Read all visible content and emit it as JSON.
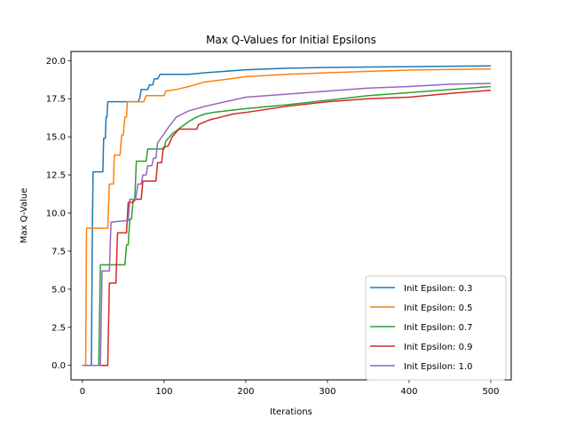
{
  "chart_data": {
    "type": "line",
    "title": "Max Q-Values for Initial Epsilons",
    "xlabel": "Iterations",
    "ylabel": "Max Q-Value",
    "xlim": [
      -14,
      525
    ],
    "ylim": [
      -0.95,
      20.6
    ],
    "xticks": [
      0,
      100,
      200,
      300,
      400,
      500
    ],
    "yticks": [
      0.0,
      2.5,
      5.0,
      7.5,
      10.0,
      12.5,
      15.0,
      17.5,
      20.0
    ],
    "grid": false,
    "legend_position": "lower right",
    "series": [
      {
        "name": "Init Epsilon: 0.3",
        "color": "#1f77b4",
        "points": [
          [
            0,
            0
          ],
          [
            11,
            0
          ],
          [
            12,
            8
          ],
          [
            13,
            12.7
          ],
          [
            25,
            12.7
          ],
          [
            26,
            14.9
          ],
          [
            28,
            14.9
          ],
          [
            29,
            16.3
          ],
          [
            30,
            16.3
          ],
          [
            31,
            17.3
          ],
          [
            68,
            17.3
          ],
          [
            70,
            17.5
          ],
          [
            72,
            18.1
          ],
          [
            80,
            18.1
          ],
          [
            82,
            18.4
          ],
          [
            86,
            18.4
          ],
          [
            88,
            18.8
          ],
          [
            92,
            18.8
          ],
          [
            95,
            19.1
          ],
          [
            130,
            19.1
          ],
          [
            150,
            19.2
          ],
          [
            200,
            19.4
          ],
          [
            250,
            19.5
          ],
          [
            300,
            19.55
          ],
          [
            350,
            19.58
          ],
          [
            400,
            19.6
          ],
          [
            450,
            19.63
          ],
          [
            500,
            19.65
          ]
        ]
      },
      {
        "name": "Init Epsilon: 0.5",
        "color": "#ff7f0e",
        "points": [
          [
            0,
            0
          ],
          [
            4,
            0
          ],
          [
            5,
            9
          ],
          [
            31,
            9
          ],
          [
            33,
            11.9
          ],
          [
            38,
            11.9
          ],
          [
            39,
            13.8
          ],
          [
            46,
            13.8
          ],
          [
            48,
            15.1
          ],
          [
            50,
            15.1
          ],
          [
            52,
            16.3
          ],
          [
            54,
            16.3
          ],
          [
            55,
            17.3
          ],
          [
            75,
            17.3
          ],
          [
            78,
            17.7
          ],
          [
            100,
            17.7
          ],
          [
            102,
            18
          ],
          [
            115,
            18.1
          ],
          [
            130,
            18.3
          ],
          [
            150,
            18.6
          ],
          [
            180,
            18.8
          ],
          [
            200,
            18.95
          ],
          [
            250,
            19.1
          ],
          [
            300,
            19.2
          ],
          [
            350,
            19.3
          ],
          [
            400,
            19.38
          ],
          [
            450,
            19.42
          ],
          [
            500,
            19.45
          ]
        ]
      },
      {
        "name": "Init Epsilon: 0.7",
        "color": "#2ca02c",
        "points": [
          [
            0,
            0
          ],
          [
            20,
            0
          ],
          [
            22,
            6.6
          ],
          [
            52,
            6.6
          ],
          [
            54,
            7.9
          ],
          [
            56,
            7.9
          ],
          [
            58,
            9.6
          ],
          [
            60,
            9.6
          ],
          [
            62,
            10.8
          ],
          [
            64,
            10.8
          ],
          [
            66,
            13.4
          ],
          [
            78,
            13.4
          ],
          [
            80,
            14.2
          ],
          [
            100,
            14.2
          ],
          [
            102,
            14.7
          ],
          [
            110,
            15.2
          ],
          [
            120,
            15.6
          ],
          [
            130,
            16
          ],
          [
            140,
            16.3
          ],
          [
            150,
            16.5
          ],
          [
            160,
            16.6
          ],
          [
            175,
            16.7
          ],
          [
            200,
            16.85
          ],
          [
            250,
            17.1
          ],
          [
            300,
            17.4
          ],
          [
            350,
            17.7
          ],
          [
            400,
            17.9
          ],
          [
            450,
            18.1
          ],
          [
            500,
            18.3
          ]
        ]
      },
      {
        "name": "Init Epsilon: 0.9",
        "color": "#d62728",
        "points": [
          [
            0,
            0
          ],
          [
            31,
            0
          ],
          [
            33,
            5.4
          ],
          [
            41,
            5.4
          ],
          [
            43,
            8.7
          ],
          [
            54,
            8.7
          ],
          [
            56,
            10.7
          ],
          [
            62,
            10.7
          ],
          [
            64,
            10.9
          ],
          [
            72,
            10.9
          ],
          [
            74,
            12.1
          ],
          [
            90,
            12.1
          ],
          [
            92,
            13.3
          ],
          [
            97,
            13.3
          ],
          [
            99,
            14.3
          ],
          [
            105,
            14.4
          ],
          [
            110,
            15.0
          ],
          [
            118,
            15.5
          ],
          [
            140,
            15.5
          ],
          [
            142,
            15.8
          ],
          [
            155,
            16.1
          ],
          [
            170,
            16.3
          ],
          [
            185,
            16.5
          ],
          [
            200,
            16.6
          ],
          [
            250,
            17
          ],
          [
            300,
            17.3
          ],
          [
            350,
            17.5
          ],
          [
            400,
            17.6
          ],
          [
            450,
            17.85
          ],
          [
            500,
            18.05
          ]
        ]
      },
      {
        "name": "Init Epsilon: 1.0",
        "color": "#9467bd",
        "points": [
          [
            0,
            0
          ],
          [
            22,
            0
          ],
          [
            24,
            6.2
          ],
          [
            33,
            6.2
          ],
          [
            35,
            9.4
          ],
          [
            52,
            9.5
          ],
          [
            56,
            9.5
          ],
          [
            58,
            10.9
          ],
          [
            65,
            10.9
          ],
          [
            68,
            11.9
          ],
          [
            72,
            11.9
          ],
          [
            74,
            12.5
          ],
          [
            78,
            12.5
          ],
          [
            80,
            13.1
          ],
          [
            85,
            13.1
          ],
          [
            87,
            13.6
          ],
          [
            90,
            13.6
          ],
          [
            92,
            14.6
          ],
          [
            100,
            15.2
          ],
          [
            105,
            15.6
          ],
          [
            115,
            16.3
          ],
          [
            130,
            16.7
          ],
          [
            150,
            17
          ],
          [
            175,
            17.3
          ],
          [
            200,
            17.6
          ],
          [
            250,
            17.8
          ],
          [
            300,
            18
          ],
          [
            350,
            18.2
          ],
          [
            400,
            18.3
          ],
          [
            450,
            18.45
          ],
          [
            500,
            18.5
          ]
        ]
      }
    ]
  }
}
